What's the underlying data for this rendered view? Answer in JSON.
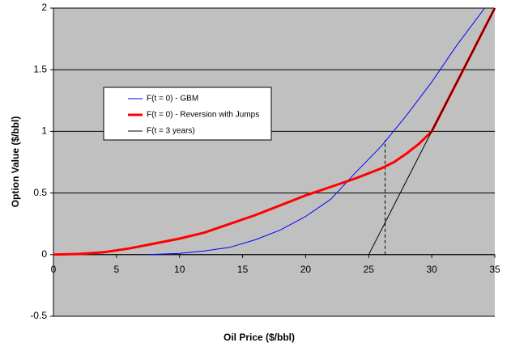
{
  "chart_data": {
    "type": "line",
    "x_label": "Oil Price ($/bbl)",
    "y_label": "Option Value ($/bbl)",
    "xlim": [
      0,
      35
    ],
    "xticks": [
      0,
      5,
      10,
      15,
      20,
      25,
      30,
      35
    ],
    "ylim": [
      -0.5,
      2
    ],
    "yticks": [
      -0.5,
      0,
      0.5,
      1,
      1.5,
      2
    ],
    "grid": true,
    "series": [
      {
        "name": "F(t = 0) - GBM",
        "color": "#0000ff",
        "width": 1,
        "x": [
          7.5,
          10,
          12,
          14,
          16,
          18,
          20,
          22,
          24,
          26,
          28,
          30,
          32,
          34.2
        ],
        "values": [
          0,
          0.01,
          0.03,
          0.06,
          0.12,
          0.2,
          0.31,
          0.45,
          0.67,
          0.88,
          1.13,
          1.4,
          1.7,
          2.0
        ]
      },
      {
        "name": "F(t = 0) - Reversion with Jumps",
        "color": "#ff0000",
        "width": 3,
        "x": [
          0,
          2,
          4,
          6,
          8,
          10,
          12,
          14,
          16,
          18,
          20,
          22,
          24,
          26,
          27,
          28,
          29,
          30,
          31,
          32,
          33,
          34,
          35
        ],
        "values": [
          0,
          0.005,
          0.02,
          0.05,
          0.09,
          0.13,
          0.18,
          0.25,
          0.32,
          0.4,
          0.48,
          0.55,
          0.62,
          0.7,
          0.75,
          0.82,
          0.9,
          1.0,
          1.2,
          1.4,
          1.6,
          1.8,
          2.0
        ]
      },
      {
        "name": "F(t = 3 years)",
        "color": "#000000",
        "width": 1,
        "x": [
          25,
          30,
          35
        ],
        "values": [
          0,
          1,
          2
        ]
      }
    ],
    "marker_line": {
      "x": 26.3,
      "y": 0.93
    }
  }
}
